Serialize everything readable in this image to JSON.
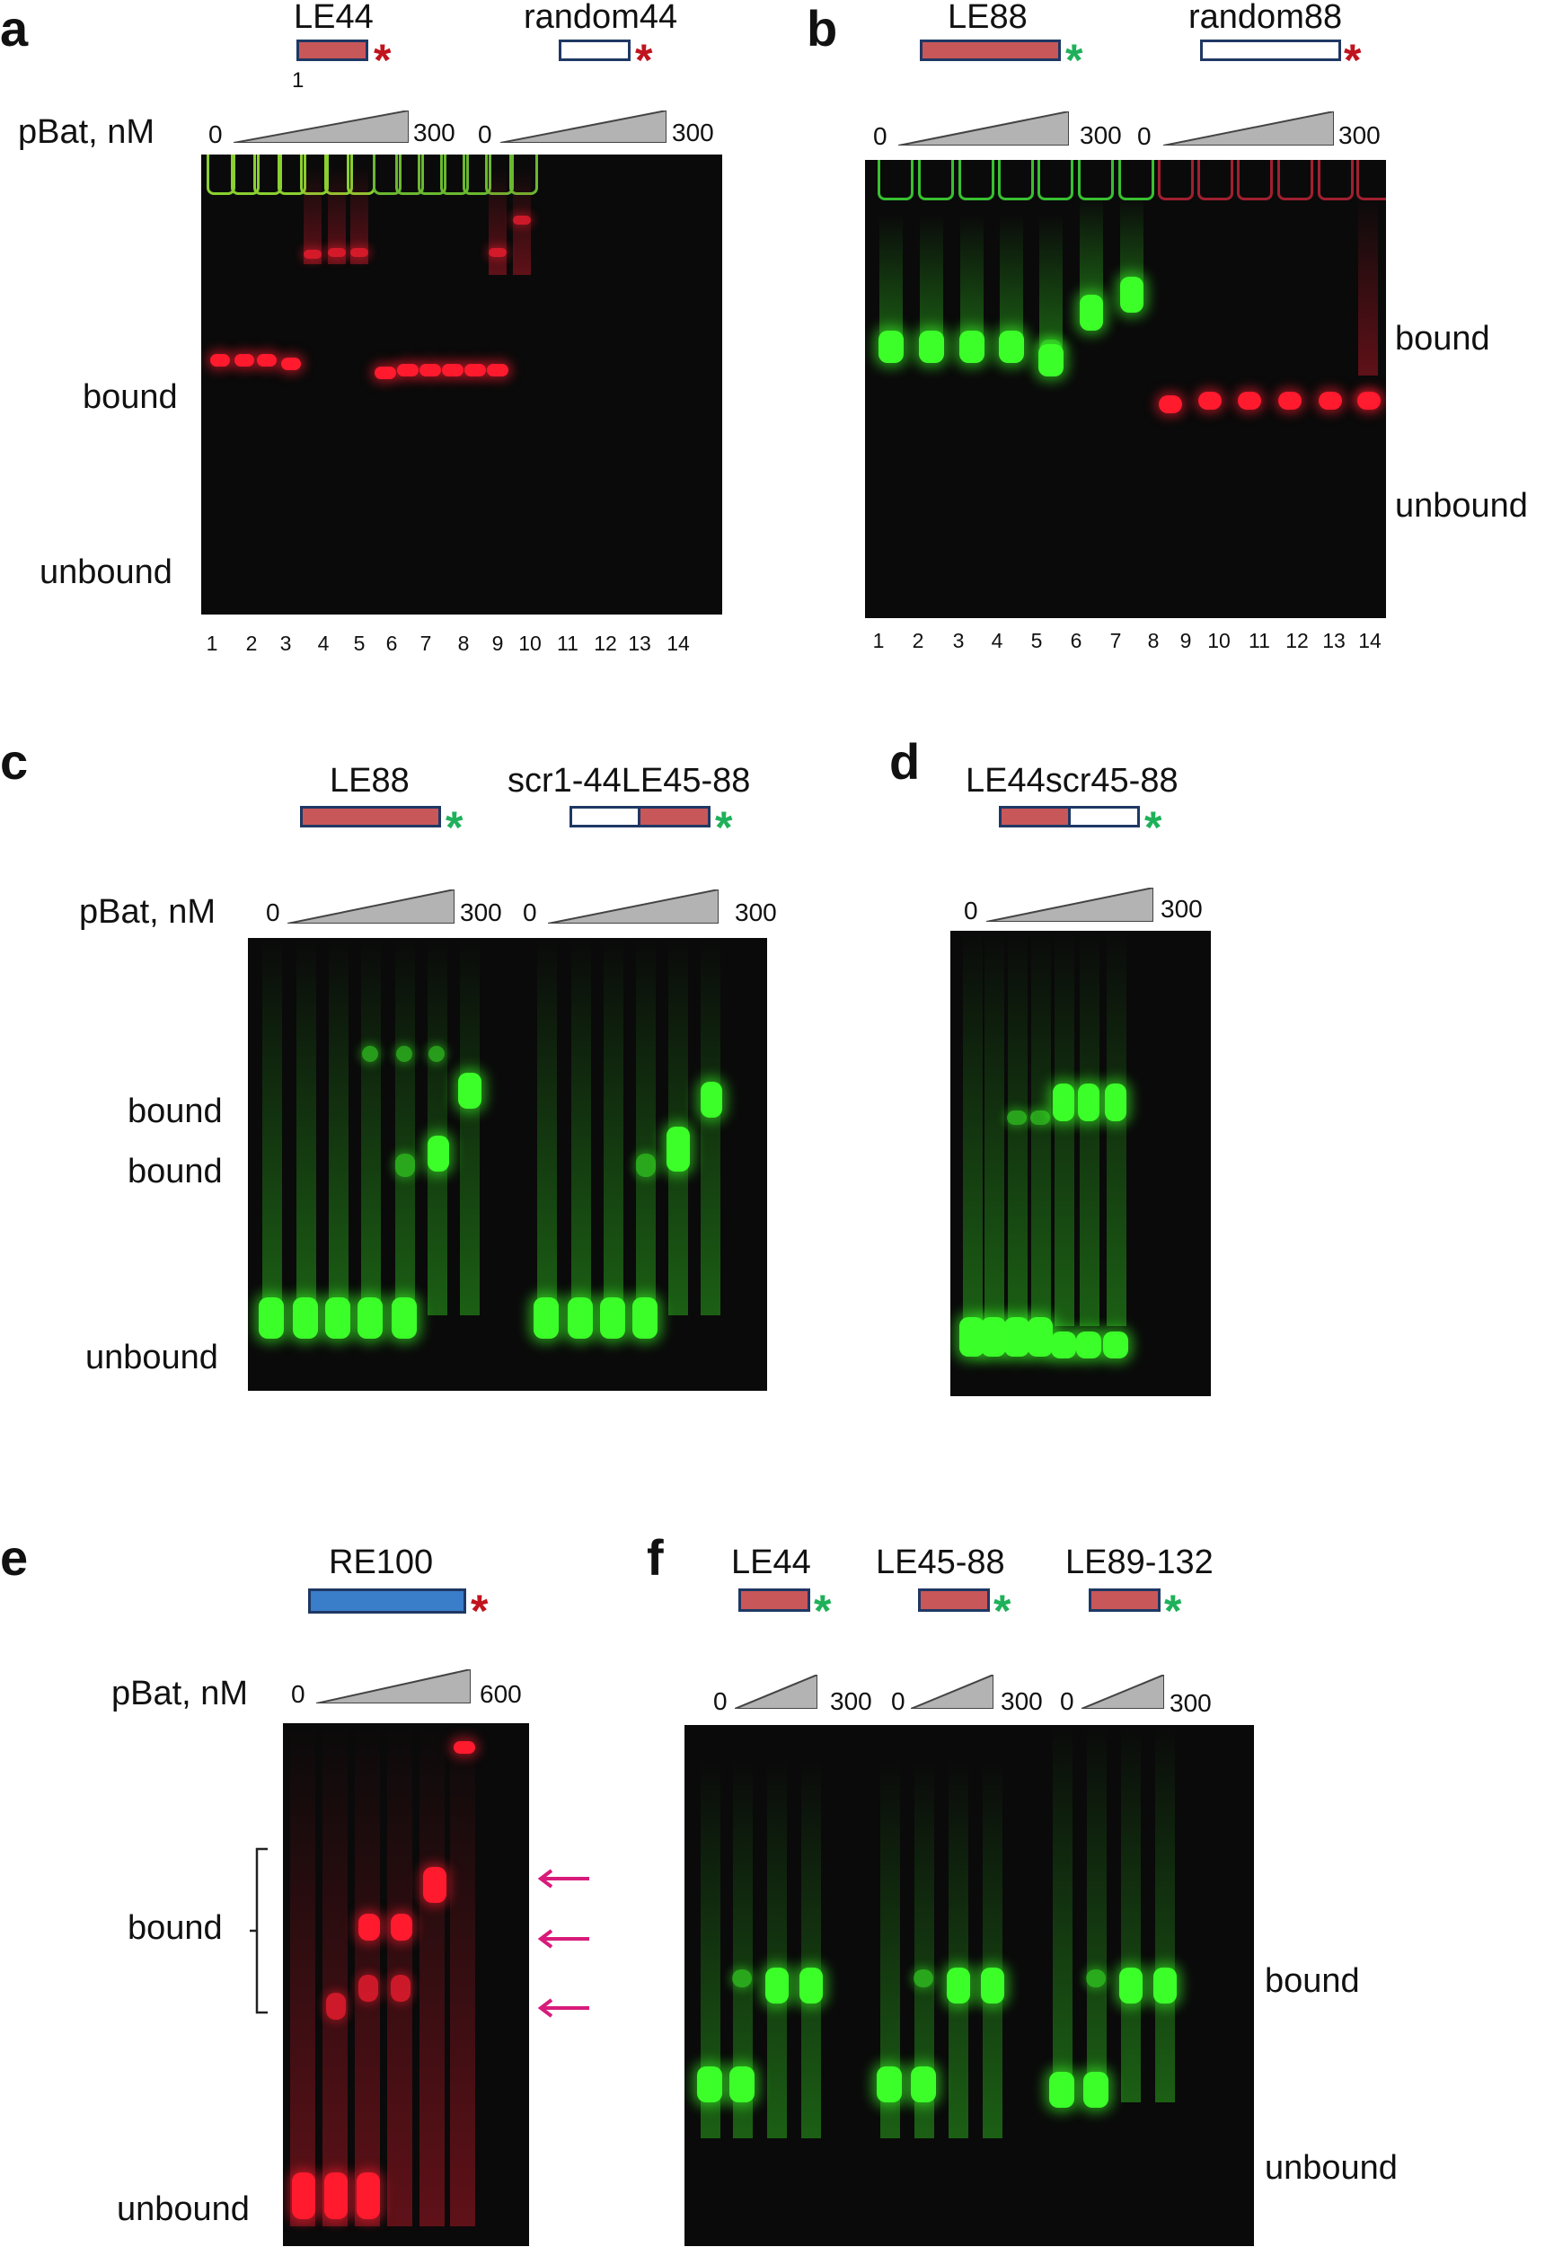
{
  "panel_a": {
    "label": "a",
    "constructs": [
      "LE44",
      "random44"
    ],
    "construct_sub": "1",
    "conc_label": "pBat, nM",
    "conc_low": "0",
    "conc_high": "300",
    "bound": "bound",
    "unbound": "unbound",
    "lanes": [
      "1",
      "2",
      "3",
      "4",
      "5",
      "6",
      "7",
      "8",
      "9",
      "10",
      "11",
      "12",
      "13",
      "14"
    ]
  },
  "panel_b": {
    "label": "b",
    "constructs": [
      "LE88",
      "random88"
    ],
    "conc_low": "0",
    "conc_high": "300",
    "bound": "bound",
    "unbound": "unbound",
    "lanes": [
      "1",
      "2",
      "3",
      "4",
      "5",
      "6",
      "7",
      "8",
      "9",
      "10",
      "11",
      "12",
      "13",
      "14"
    ]
  },
  "panel_c": {
    "label": "c",
    "constructs": [
      "LE88",
      "scr1-44LE45-88"
    ],
    "conc_label": "pBat, nM",
    "conc_low": "0",
    "conc_high": "300",
    "bound1": "bound",
    "bound2": "bound",
    "unbound": "unbound"
  },
  "panel_d": {
    "label": "d",
    "construct": "LE44scr45-88",
    "conc_low": "0",
    "conc_high": "300"
  },
  "panel_e": {
    "label": "e",
    "construct": "RE100",
    "conc_label": "pBat, nM",
    "conc_low": "0",
    "conc_high": "600",
    "bound": "bound",
    "unbound": "unbound"
  },
  "panel_f": {
    "label": "f",
    "constructs": [
      "LE44",
      "LE45-88",
      "LE89-132"
    ],
    "conc_low": "0",
    "conc_high": "300",
    "bound": "bound",
    "unbound": "unbound"
  },
  "colors": {
    "red_label": "#c0141e",
    "green_label": "#1fb15a",
    "arrow": "#d81b7a"
  },
  "star_glyph": "*"
}
